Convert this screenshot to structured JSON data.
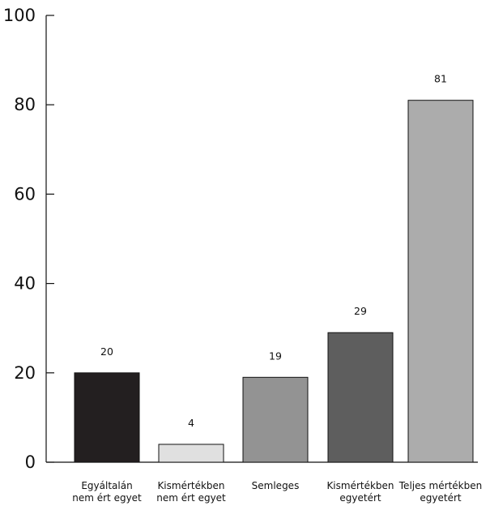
{
  "chart_data": {
    "type": "bar",
    "title": "",
    "xlabel": "",
    "ylabel": "",
    "ylim": [
      0,
      100
    ],
    "yticks": [
      0,
      20,
      40,
      60,
      80,
      100
    ],
    "grid": false,
    "legend": "none",
    "categories": [
      [
        "Egyáltalán",
        "nem ért egyet"
      ],
      [
        "Kismértékben",
        "nem ért egyet"
      ],
      [
        "Semleges"
      ],
      [
        "Kismértékben",
        "egyetért"
      ],
      [
        "Teljes mértékben",
        "egyetért"
      ]
    ],
    "values": [
      20,
      4,
      19,
      29,
      81
    ],
    "data_labels": [
      "20",
      "4",
      "19",
      "29",
      "81"
    ],
    "colors": [
      "#231f20",
      "#e0e0e0",
      "#939393",
      "#5e5e5e",
      "#acacac"
    ]
  }
}
